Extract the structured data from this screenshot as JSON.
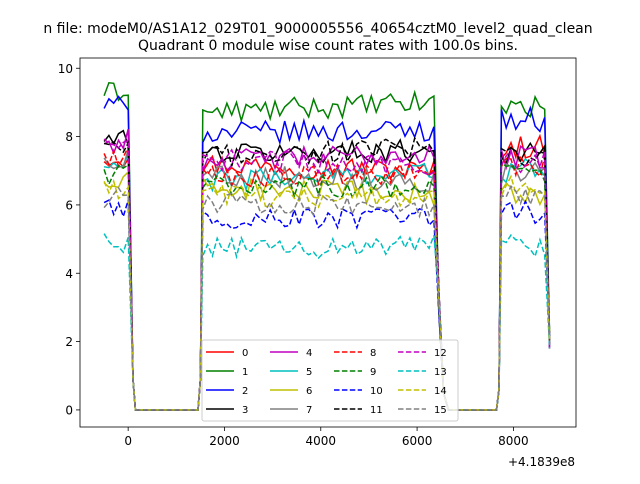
{
  "suptitle": "n file: modeM0/AS1A12_029T01_9000005556_40654cztM0_level2_quad_clean",
  "chart_data": {
    "type": "line",
    "title": "Quadrant 0 module wise count rates with 100.0s bins.",
    "xlabel": "",
    "ylabel": "",
    "x_offset_label": "+4.1839e8",
    "xlim": [
      -1000,
      9300
    ],
    "ylim": [
      -0.5,
      10.3
    ],
    "xticks": [
      0,
      2000,
      4000,
      6000,
      8000
    ],
    "yticks": [
      0,
      2,
      4,
      6,
      8,
      10
    ],
    "grid": false,
    "legend_position": "lower center",
    "segments": {
      "seg1": {
        "x_start": -500,
        "x_end": 50,
        "step": 100
      },
      "gap1": {
        "x_start": 150,
        "x_end": 1450,
        "step": 100
      },
      "seg2": {
        "x_start": 1550,
        "x_end": 6350,
        "step": 100
      },
      "gap2": {
        "x_start": 6650,
        "x_end": 7650,
        "step": 100
      },
      "seg3": {
        "x_start": 7750,
        "x_end": 8650,
        "step": 100
      },
      "drop_points": [
        [
          100,
          0.9
        ],
        [
          1500,
          0.9
        ],
        [
          6450,
          3.2
        ],
        [
          6550,
          0.5
        ],
        [
          7700,
          0.6
        ],
        [
          8750,
          2.0
        ]
      ]
    },
    "series": [
      {
        "name": "0",
        "color": "#ff0000",
        "dash": "solid",
        "base": [
          7.4,
          7.2,
          7.0,
          7.7
        ]
      },
      {
        "name": "1",
        "color": "#008000",
        "dash": "solid",
        "base": [
          9.3,
          8.7,
          9.0,
          8.9
        ]
      },
      {
        "name": "2",
        "color": "#0000ff",
        "dash": "solid",
        "base": [
          8.9,
          8.1,
          8.2,
          8.5
        ]
      },
      {
        "name": "3",
        "color": "#000000",
        "dash": "solid",
        "base": [
          7.9,
          7.5,
          7.6,
          7.5
        ]
      },
      {
        "name": "4",
        "color": "#bf00bf",
        "dash": "solid",
        "base": [
          7.8,
          7.3,
          7.5,
          7.4
        ]
      },
      {
        "name": "5",
        "color": "#00bfbf",
        "dash": "solid",
        "base": [
          7.1,
          6.7,
          7.0,
          7.0
        ]
      },
      {
        "name": "6",
        "color": "#bfbf00",
        "dash": "solid",
        "base": [
          6.6,
          6.5,
          6.3,
          6.3
        ]
      },
      {
        "name": "7",
        "color": "#808080",
        "dash": "solid",
        "base": [
          7.3,
          6.9,
          6.7,
          6.9
        ]
      },
      {
        "name": "8",
        "color": "#ff0000",
        "dash": "dashed",
        "base": [
          7.4,
          6.8,
          6.9,
          7.1
        ]
      },
      {
        "name": "9",
        "color": "#008000",
        "dash": "dashed",
        "base": [
          6.9,
          6.6,
          6.5,
          6.9
        ]
      },
      {
        "name": "10",
        "color": "#0000ff",
        "dash": "dashed",
        "base": [
          5.9,
          5.6,
          5.6,
          5.8
        ]
      },
      {
        "name": "11",
        "color": "#000000",
        "dash": "dashed",
        "base": [
          7.6,
          7.4,
          7.7,
          7.4
        ]
      },
      {
        "name": "12",
        "color": "#bf00bf",
        "dash": "dashed",
        "base": [
          7.7,
          7.3,
          7.2,
          7.3
        ]
      },
      {
        "name": "13",
        "color": "#00bfbf",
        "dash": "dashed",
        "base": [
          4.9,
          4.7,
          4.8,
          4.8
        ]
      },
      {
        "name": "14",
        "color": "#bfbf00",
        "dash": "dashed",
        "base": [
          6.4,
          6.3,
          6.2,
          6.5
        ]
      },
      {
        "name": "15",
        "color": "#808080",
        "dash": "dashed",
        "base": [
          6.2,
          6.1,
          5.9,
          6.2
        ]
      }
    ]
  }
}
